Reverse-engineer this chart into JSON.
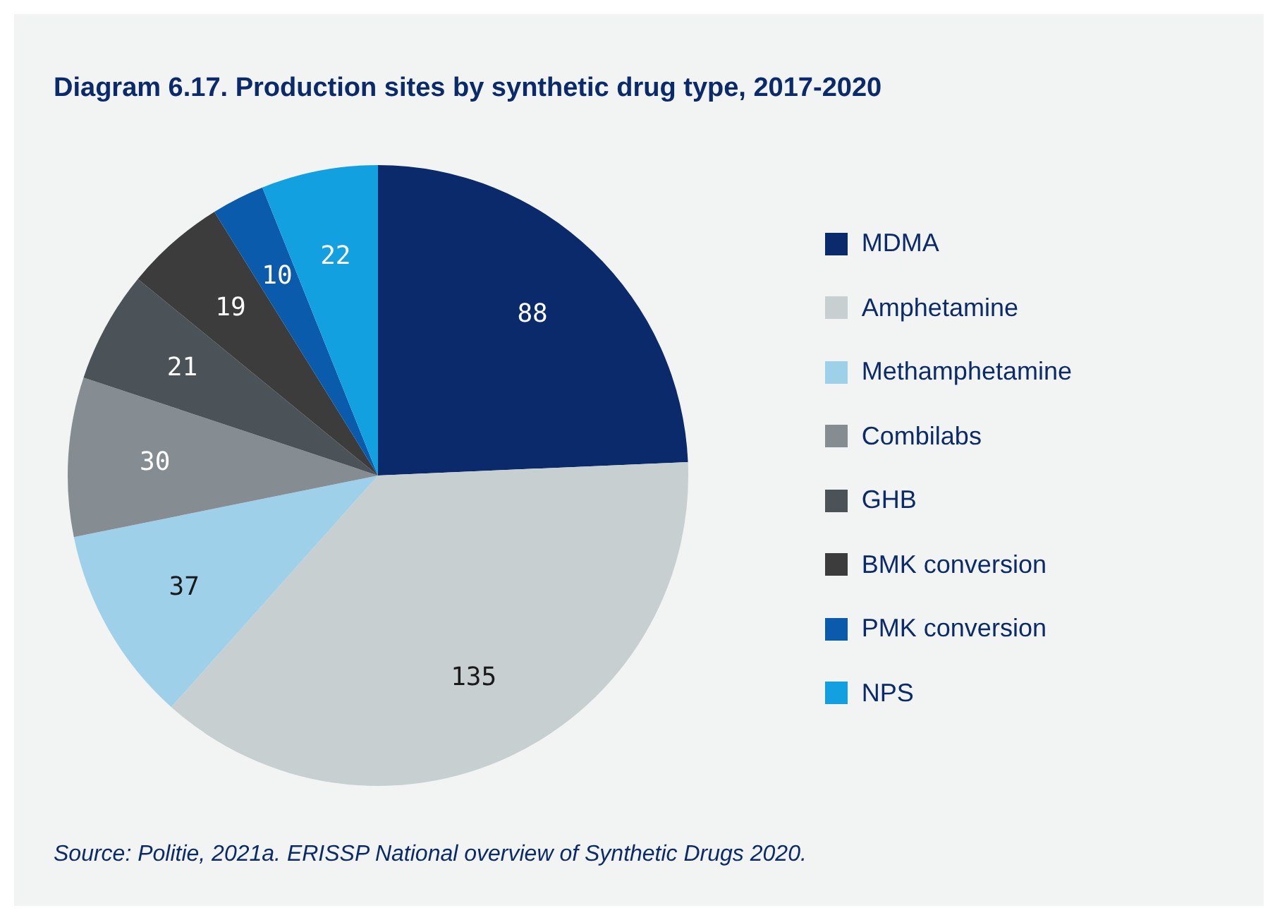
{
  "chart_data": {
    "type": "pie",
    "title": "Diagram 6.17. Production sites by synthetic drug type, 2017-2020",
    "categories": [
      "MDMA",
      "Amphetamine",
      "Methamphetamine",
      "Combilabs",
      "GHB",
      "BMK conversion",
      "PMK conversion",
      "NPS"
    ],
    "values": [
      88,
      135,
      37,
      30,
      21,
      19,
      10,
      22
    ],
    "colors": [
      "#0b2a6b",
      "#c8cfd1",
      "#9fd0ea",
      "#868d92",
      "#4b5359",
      "#3c3c3c",
      "#0a5bab",
      "#13a0e0"
    ],
    "data_labels": true,
    "legend": "right",
    "annotations": [
      "Source: Politie, 2021a. ERISSP National overview of Synthetic Drugs 2020."
    ]
  }
}
